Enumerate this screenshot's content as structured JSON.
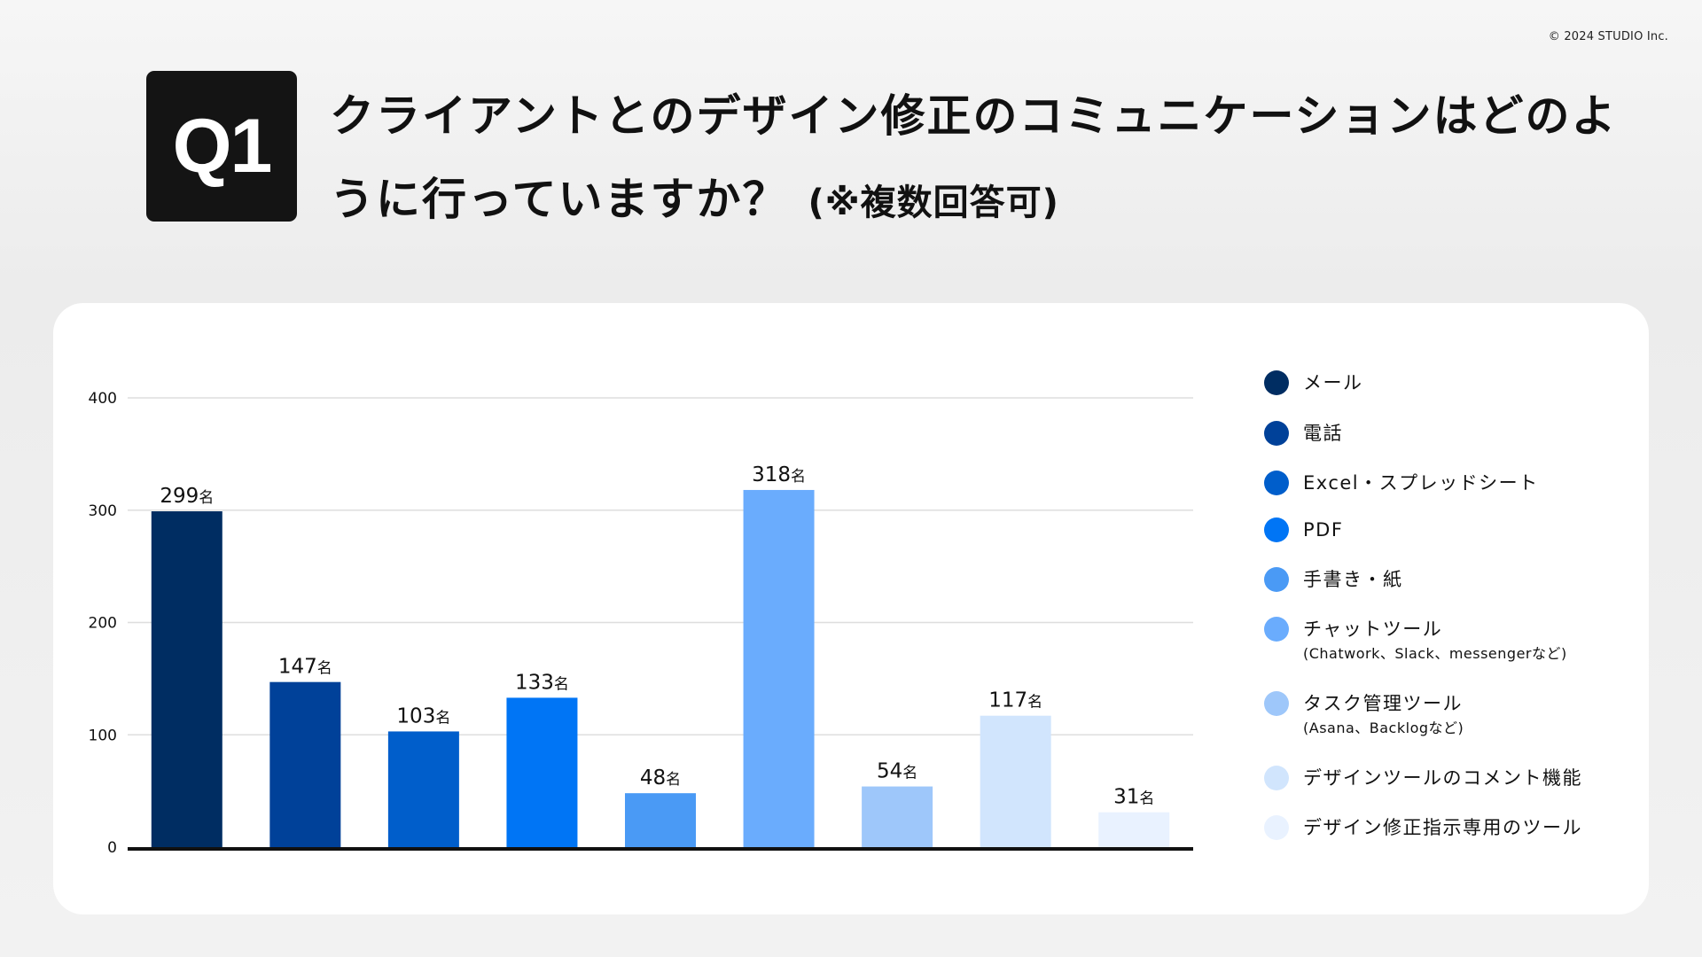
{
  "copyright": "© 2024 STUDIO Inc.",
  "question": {
    "badge": "Q1",
    "title": "クライアントとのデザイン修正のコミュニケーションはどのように行っていますか？",
    "note": "(※複数回答可)"
  },
  "chart_data": {
    "type": "bar",
    "categories": [
      "メール",
      "電話",
      "Excel・スプレッドシート",
      "PDF",
      "手書き・紙",
      "チャットツール",
      "タスク管理ツール",
      "デザインツールのコメント機能",
      "デザイン修正指示専用のツール"
    ],
    "category_notes": [
      "",
      "",
      "",
      "",
      "",
      "(Chatwork、Slack、messengerなど)",
      "(Asana、Backlogなど)",
      "",
      ""
    ],
    "values": [
      299,
      147,
      103,
      133,
      48,
      318,
      54,
      117,
      31
    ],
    "value_unit": "名",
    "colors": [
      "#002d62",
      "#004199",
      "#005ecb",
      "#0075f5",
      "#4a9af5",
      "#6aacfd",
      "#9ec7fa",
      "#d1e5fd",
      "#e9f2ff"
    ],
    "ylim": [
      0,
      400
    ],
    "yticks": [
      0,
      100,
      200,
      300,
      400
    ],
    "grid": true,
    "legend": "right",
    "title": "",
    "xlabel": "",
    "ylabel": ""
  }
}
